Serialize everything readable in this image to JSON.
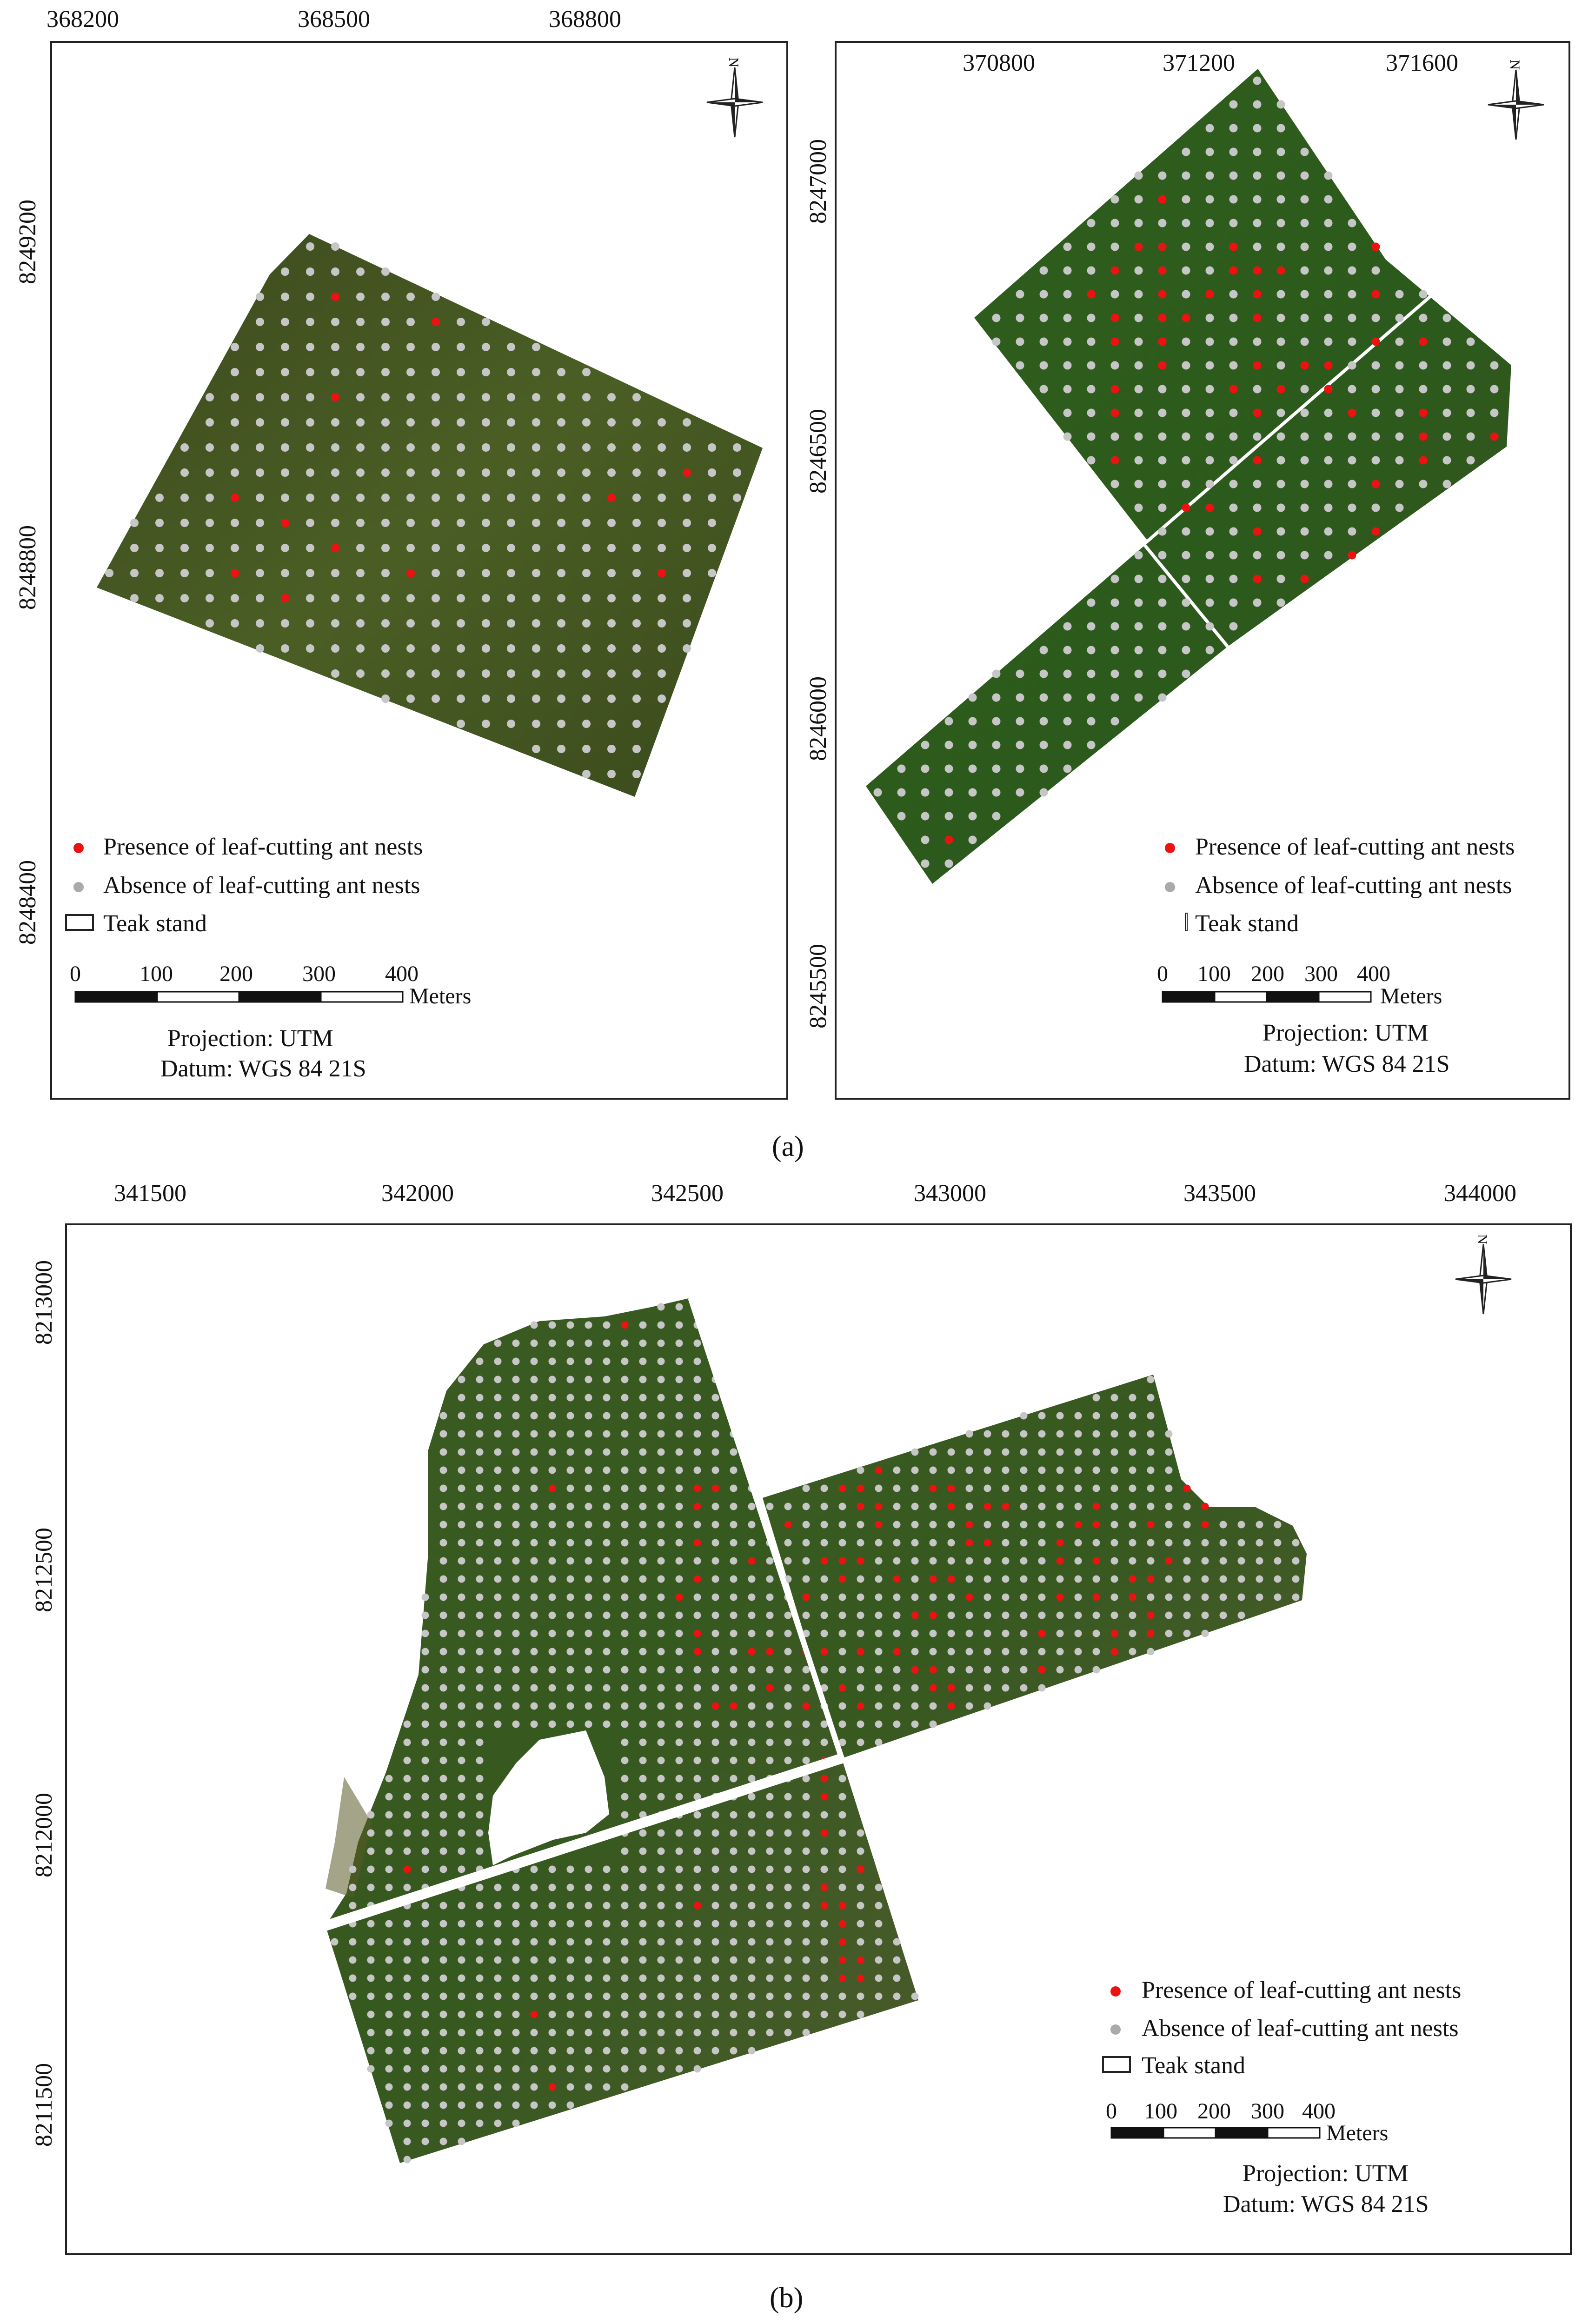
{
  "colors": {
    "presence": "#ee1111",
    "absence": "#c6c6c6",
    "stand_dark": "#3f4f22",
    "stand_mid": "#4f6a28",
    "border": "#222222"
  },
  "panel_a_left": {
    "x_ticks": [
      "368200",
      "368500",
      "368800"
    ],
    "y_ticks": [
      "8249200",
      "8248800",
      "8248400"
    ],
    "compass_label": "N",
    "legend": {
      "presence": "Presence of leaf-cutting ant nests",
      "absence": "Absence of leaf-cutting ant nests",
      "stand": "Teak stand"
    },
    "scale": {
      "ticks": [
        "0",
        "100",
        "200",
        "300",
        "400"
      ],
      "unit": "Meters"
    },
    "projection": "Projection: UTM",
    "datum": "Datum: WGS 84 21S"
  },
  "panel_a_right": {
    "x_ticks": [
      "370800",
      "371200",
      "371600"
    ],
    "y_ticks": [
      "8247000",
      "8246500",
      "8246000",
      "8245500"
    ],
    "compass_label": "N",
    "legend": {
      "presence": "Presence of leaf-cutting ant nests",
      "absence": "Absence of leaf-cutting ant nests",
      "stand": "Teak stand"
    },
    "scale": {
      "ticks": [
        "0",
        "100",
        "200",
        "300",
        "400"
      ],
      "unit": "Meters"
    },
    "projection": "Projection: UTM",
    "datum": "Datum: WGS 84 21S"
  },
  "panel_b": {
    "x_ticks": [
      "341500",
      "342000",
      "342500",
      "343000",
      "343500",
      "344000"
    ],
    "y_ticks": [
      "8213000",
      "8212500",
      "8212000",
      "8211500"
    ],
    "compass_label": "N",
    "legend": {
      "presence": "Presence of leaf-cutting ant nests",
      "absence": "Absence of leaf-cutting ant nests",
      "stand": "Teak stand"
    },
    "scale": {
      "ticks": [
        "0",
        "100",
        "200",
        "300",
        "400"
      ],
      "unit": "Meters"
    },
    "projection": "Projection: UTM",
    "datum": "Datum: WGS 84 21S"
  },
  "labels": {
    "a": "(a)",
    "b": "(b)"
  }
}
